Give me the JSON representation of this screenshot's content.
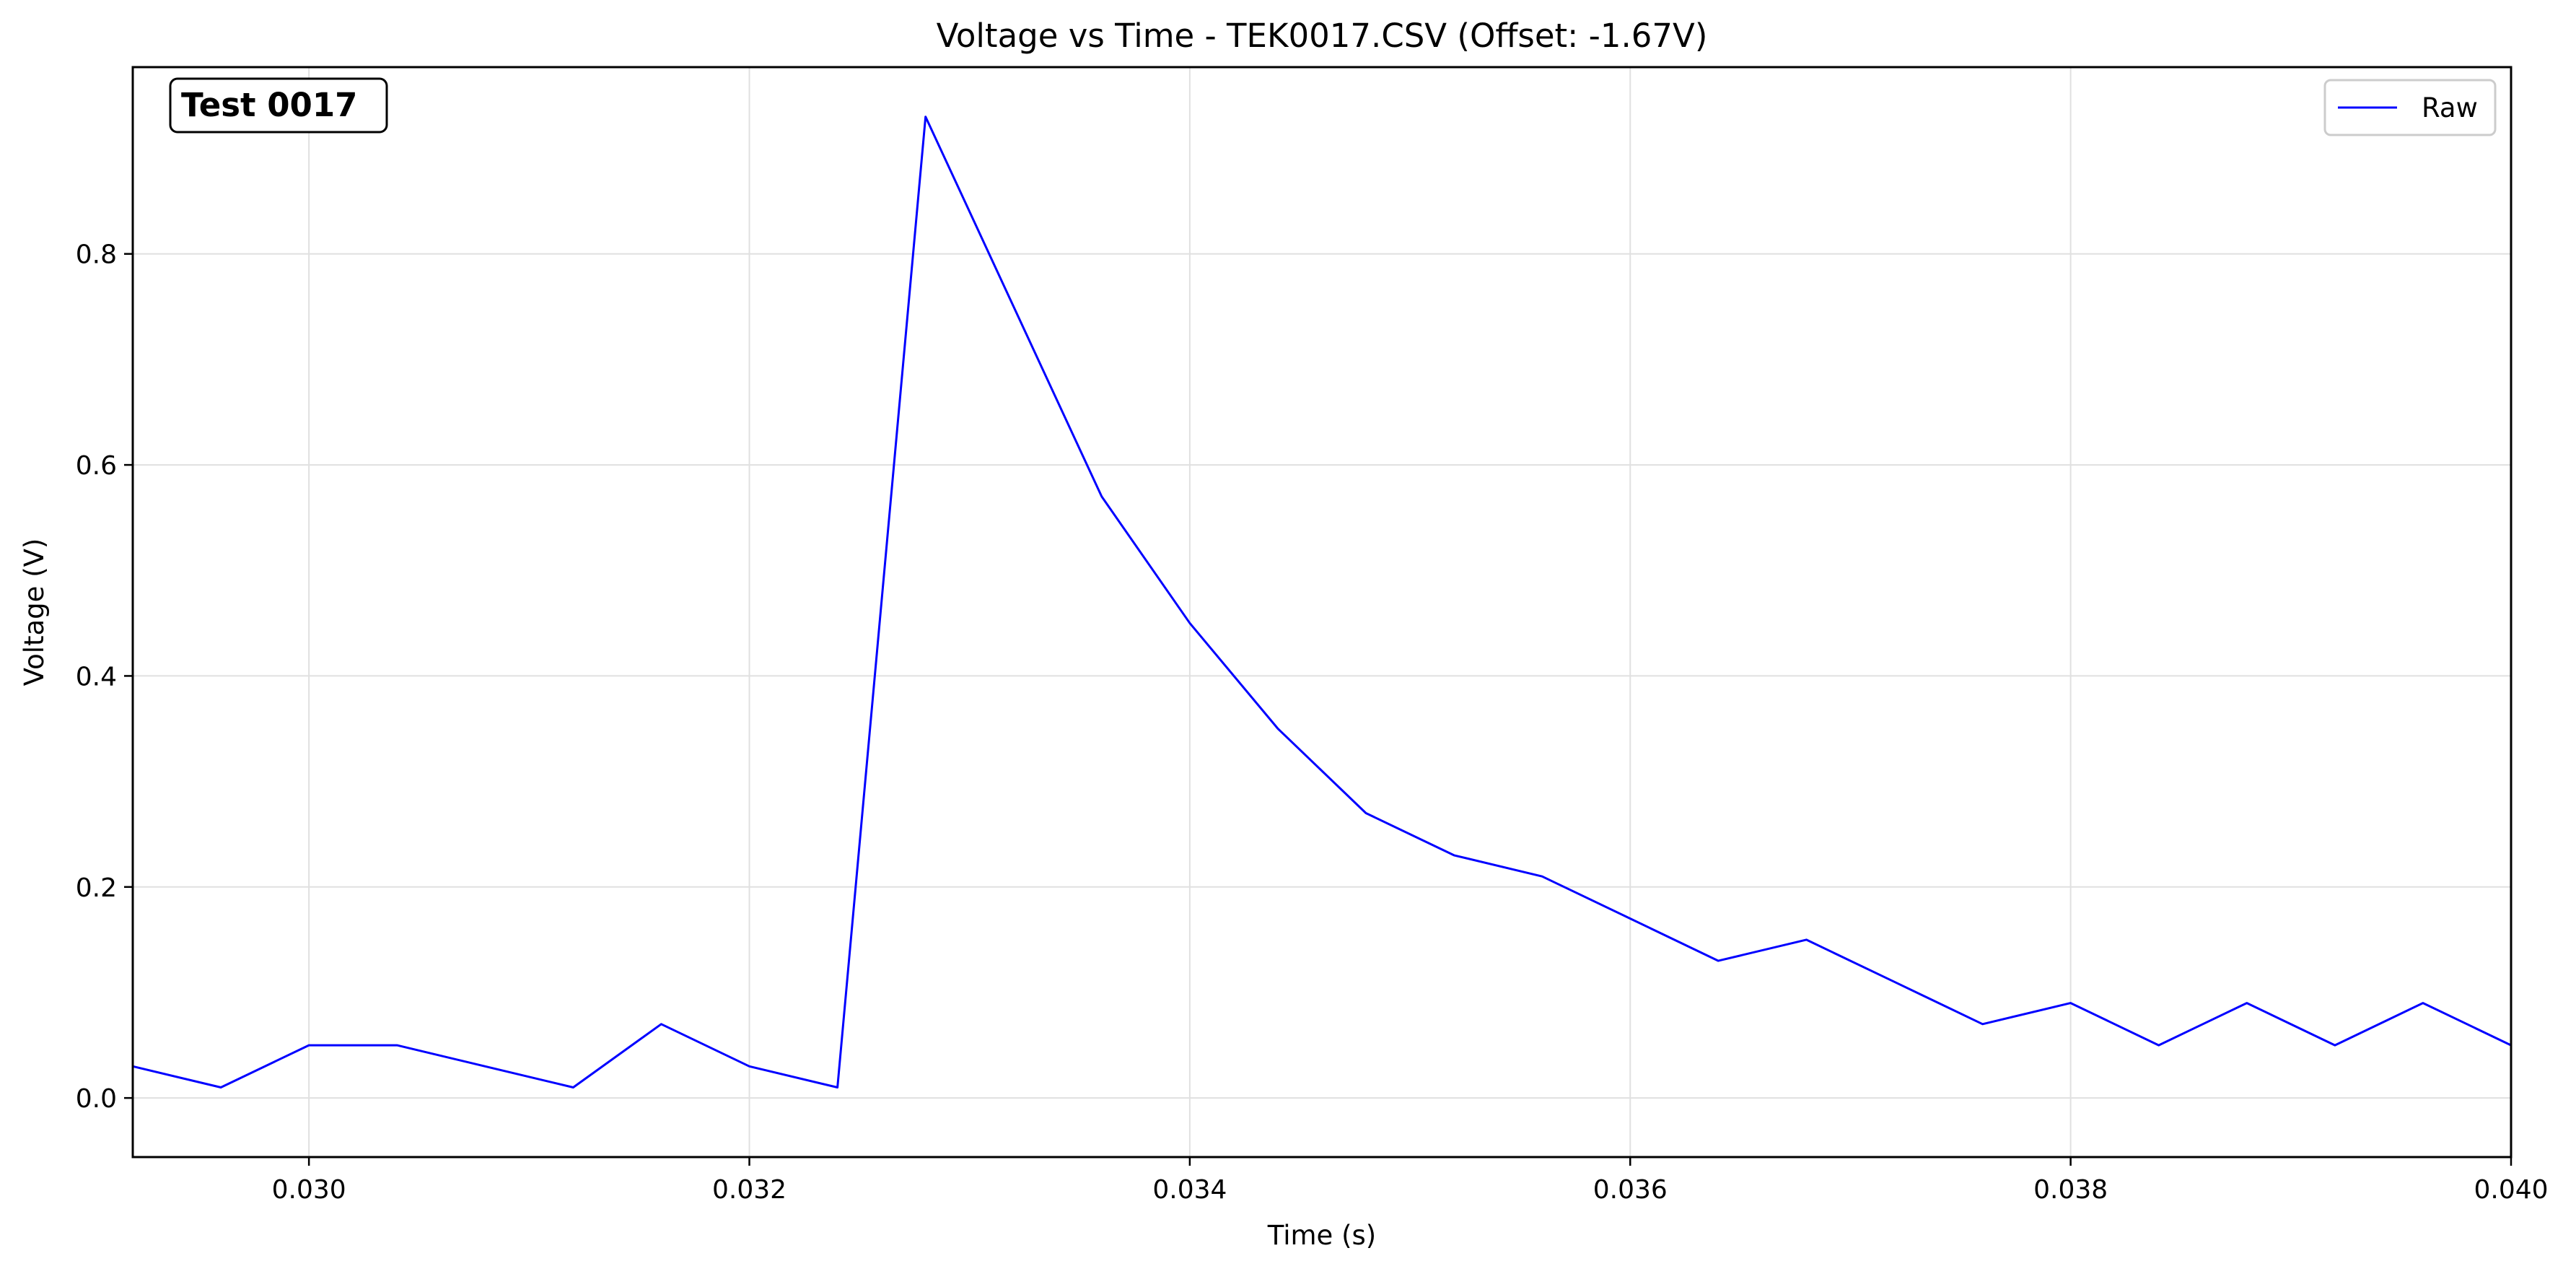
{
  "chart_data": {
    "type": "line",
    "title": "Voltage vs Time - TEK0017.CSV (Offset: -1.67V)",
    "xlabel": "Time (s)",
    "ylabel": "Voltage (V)",
    "xlim": [
      0.0292,
      0.04
    ],
    "ylim": [
      -0.056,
      0.977
    ],
    "xticks": [
      0.03,
      0.032,
      0.034,
      0.036,
      0.038,
      0.04
    ],
    "xtick_labels": [
      "0.030",
      "0.032",
      "0.034",
      "0.036",
      "0.038",
      "0.040"
    ],
    "yticks": [
      0.0,
      0.2,
      0.4,
      0.6,
      0.8
    ],
    "ytick_labels": [
      "0.0",
      "0.2",
      "0.4",
      "0.6",
      "0.8"
    ],
    "grid": true,
    "legend_position": "top-right",
    "annotation": "Test 0017",
    "series": [
      {
        "name": "Raw",
        "color": "#0000ff",
        "x": [
          0.0292,
          0.0296,
          0.03,
          0.0304,
          0.0308,
          0.0312,
          0.0316,
          0.032,
          0.0324,
          0.0328,
          0.0332,
          0.0336,
          0.034,
          0.0344,
          0.0348,
          0.0352,
          0.0356,
          0.036,
          0.0364,
          0.0368,
          0.0372,
          0.0376,
          0.038,
          0.0384,
          0.0388,
          0.0392,
          0.0396,
          0.04
        ],
        "y": [
          0.03,
          0.01,
          0.05,
          0.05,
          0.03,
          0.01,
          0.07,
          0.03,
          0.01,
          0.93,
          0.75,
          0.57,
          0.45,
          0.35,
          0.27,
          0.23,
          0.21,
          0.17,
          0.13,
          0.15,
          0.11,
          0.07,
          0.09,
          0.05,
          0.09,
          0.05,
          0.09,
          0.05
        ]
      }
    ]
  }
}
